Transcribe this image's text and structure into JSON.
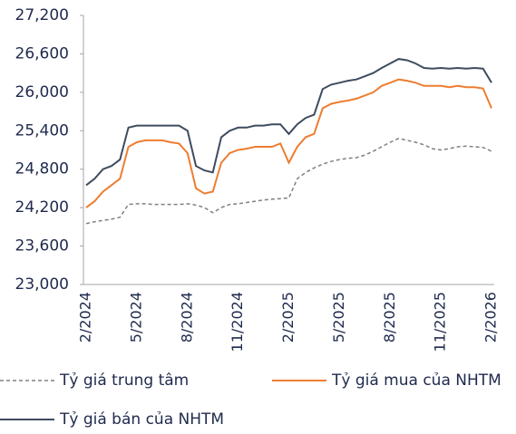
{
  "chart_data": {
    "type": "line",
    "categories": [
      "2/2024",
      null,
      null,
      null,
      null,
      null,
      "5/2024",
      null,
      null,
      null,
      null,
      null,
      "8/2024",
      null,
      null,
      null,
      null,
      null,
      "11/2024",
      null,
      null,
      null,
      null,
      null,
      "2/2025",
      null,
      null,
      null,
      null,
      null,
      "5/2025",
      null,
      null,
      null,
      null,
      null,
      "8/2025",
      null,
      null,
      null,
      null,
      null,
      "11/2025",
      null,
      null,
      null,
      null,
      null,
      "2/2026"
    ],
    "series": [
      {
        "name": "Tỷ giá trung tâm",
        "color": "#808080",
        "dash": true,
        "values": [
          23950,
          23980,
          24000,
          24020,
          24050,
          24250,
          24260,
          24260,
          24250,
          24250,
          24250,
          24250,
          24260,
          24240,
          24200,
          24120,
          24200,
          24250,
          24260,
          24280,
          24300,
          24320,
          24330,
          24340,
          24350,
          24650,
          24750,
          24820,
          24880,
          24920,
          24950,
          24970,
          24980,
          25020,
          25080,
          25150,
          25220,
          25280,
          25250,
          25220,
          25180,
          25120,
          25100,
          25120,
          25150,
          25160,
          25150,
          25140,
          25080
        ]
      },
      {
        "name": "Tỷ giá mua của NHTM",
        "color": "#ed7d31",
        "dash": false,
        "values": [
          24200,
          24300,
          24450,
          24550,
          24650,
          25150,
          25220,
          25250,
          25250,
          25250,
          25220,
          25200,
          25050,
          24500,
          24420,
          24450,
          24900,
          25050,
          25100,
          25120,
          25150,
          25150,
          25150,
          25200,
          24900,
          25150,
          25300,
          25350,
          25750,
          25820,
          25850,
          25870,
          25900,
          25950,
          26000,
          26100,
          26150,
          26200,
          26180,
          26150,
          26100,
          26100,
          26100,
          26080,
          26100,
          26080,
          26080,
          26060,
          25750
        ]
      },
      {
        "name": "Tỷ giá bán của NHTM",
        "color": "#3f4b5f",
        "dash": false,
        "values": [
          24550,
          24650,
          24800,
          24850,
          24950,
          25450,
          25480,
          25480,
          25480,
          25480,
          25480,
          25480,
          25400,
          24850,
          24780,
          24750,
          25300,
          25400,
          25450,
          25450,
          25480,
          25480,
          25500,
          25500,
          25350,
          25500,
          25600,
          25650,
          26050,
          26120,
          26150,
          26180,
          26200,
          26250,
          26300,
          26380,
          26450,
          26520,
          26500,
          26450,
          26380,
          26370,
          26380,
          26370,
          26380,
          26370,
          26380,
          26370,
          26150
        ]
      }
    ],
    "ylim": [
      23000,
      27200
    ],
    "yticks": [
      {
        "value": 23000,
        "label": "23,000"
      },
      {
        "value": 23600,
        "label": "23,600"
      },
      {
        "value": 24200,
        "label": "24,200"
      },
      {
        "value": 24800,
        "label": "24,800"
      },
      {
        "value": 25400,
        "label": "25,400"
      },
      {
        "value": 26000,
        "label": "26,000"
      },
      {
        "value": 26600,
        "label": "26,600"
      },
      {
        "value": 27200,
        "label": "27,200"
      }
    ],
    "grid": false
  }
}
